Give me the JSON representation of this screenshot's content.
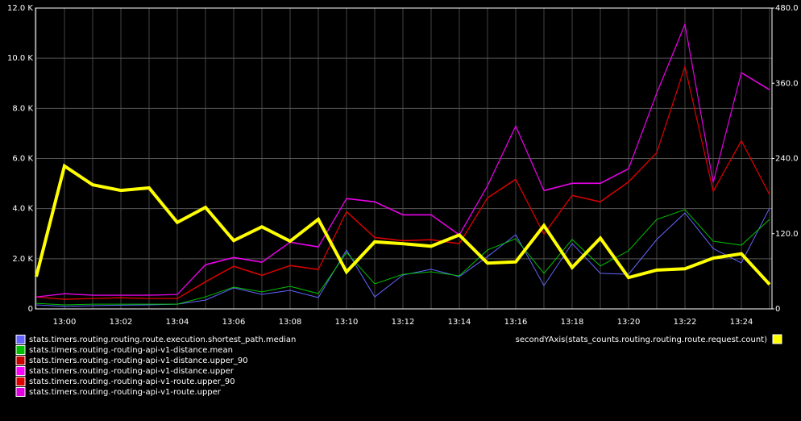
{
  "chart_data": {
    "type": "line",
    "categories": [
      null,
      "13:00",
      null,
      "13:02",
      null,
      "13:04",
      null,
      "13:06",
      null,
      "13:08",
      null,
      "13:10",
      null,
      "13:12",
      null,
      "13:14",
      null,
      "13:16",
      null,
      "13:18",
      null,
      "13:20",
      null,
      "13:22",
      null,
      "13:24",
      null
    ],
    "ylim": [
      0,
      12000
    ],
    "yticks": [
      0,
      {
        "value": 2000,
        "label": "2.0 K"
      },
      {
        "value": 4000,
        "label": "4.0 K"
      },
      {
        "value": 6000,
        "label": "6.0 K"
      },
      {
        "value": 8000,
        "label": "8.0 K"
      },
      {
        "value": 10000,
        "label": "10.0 K"
      },
      {
        "value": 12000,
        "label": "12.0 K"
      }
    ],
    "y2lim": [
      0,
      480
    ],
    "y2ticks": [
      0,
      {
        "value": 120,
        "label": "120.0"
      },
      {
        "value": 240,
        "label": "240.0"
      },
      {
        "value": 360,
        "label": "360.0"
      },
      {
        "value": 480,
        "label": "480.0"
      }
    ],
    "grid": true,
    "series": [
      {
        "name": "stats.timers.routing.routing.route.execution.shortest_path.median",
        "color": "#6464ff",
        "values": [
          160,
          100,
          130,
          150,
          160,
          190,
          350,
          840,
          580,
          740,
          450,
          2350,
          480,
          1350,
          1580,
          1290,
          2090,
          2960,
          930,
          2610,
          1420,
          1380,
          2770,
          3830,
          2410,
          1830,
          4020
        ]
      },
      {
        "name": "stats.timers.routing.-routing-api-v1-distance.mean",
        "color": "#00c000",
        "values": [
          220,
          160,
          190,
          190,
          190,
          190,
          480,
          870,
          680,
          900,
          610,
          2250,
          1000,
          1380,
          1480,
          1320,
          2350,
          2800,
          1420,
          2770,
          1710,
          2320,
          3570,
          3960,
          2700,
          2540,
          3570
        ]
      },
      {
        "name": "stats.timers.routing.-routing-api-v1-distance.upper_90",
        "color": "#c80000",
        "values": [
          480,
          390,
          420,
          450,
          420,
          420,
          1090,
          1710,
          1350,
          1740,
          1580,
          3890,
          2860,
          2730,
          2770,
          2610,
          4440,
          5180,
          2990,
          4540,
          4280,
          5080,
          6240,
          9680,
          4700,
          6720,
          4570
        ]
      },
      {
        "name": "stats.timers.routing.-routing-api-v1-distance.upper",
        "color": "#ff00ff",
        "values": [
          480,
          610,
          550,
          550,
          550,
          580,
          1770,
          2060,
          1870,
          2670,
          2480,
          4410,
          4280,
          3760,
          3760,
          2960,
          4920,
          7300,
          4730,
          5020,
          5020,
          5600,
          8620,
          11360,
          5050,
          9430,
          8750
        ]
      },
      {
        "name": "stats.timers.routing.-routing-api-v1-route.upper_90",
        "color": "#e00000",
        "values": [
          470,
          380,
          410,
          440,
          410,
          410,
          1070,
          1690,
          1330,
          1720,
          1560,
          3870,
          2840,
          2710,
          2750,
          2590,
          4420,
          5160,
          2970,
          4520,
          4260,
          5060,
          6220,
          9660,
          4680,
          6700,
          4550
        ]
      },
      {
        "name": "stats.timers.routing.-routing-api-v1-route.upper",
        "color": "#e000e0",
        "values": [
          470,
          600,
          540,
          540,
          540,
          570,
          1750,
          2040,
          1850,
          2650,
          2460,
          4390,
          4260,
          3740,
          3740,
          2940,
          4900,
          7280,
          4710,
          5000,
          5000,
          5580,
          8600,
          11340,
          5030,
          9410,
          8730
        ]
      },
      {
        "name": "secondYAxis(stats_counts.routing.routing.route.request.count)",
        "color": "#ffff00",
        "axis": "y2",
        "values": [
          51.5,
          228,
          198,
          189,
          193,
          138,
          162,
          109,
          131,
          108,
          143,
          59,
          107,
          104,
          100,
          118,
          73,
          75,
          133,
          66,
          113,
          50,
          62,
          64,
          81,
          88,
          39
        ]
      }
    ]
  }
}
